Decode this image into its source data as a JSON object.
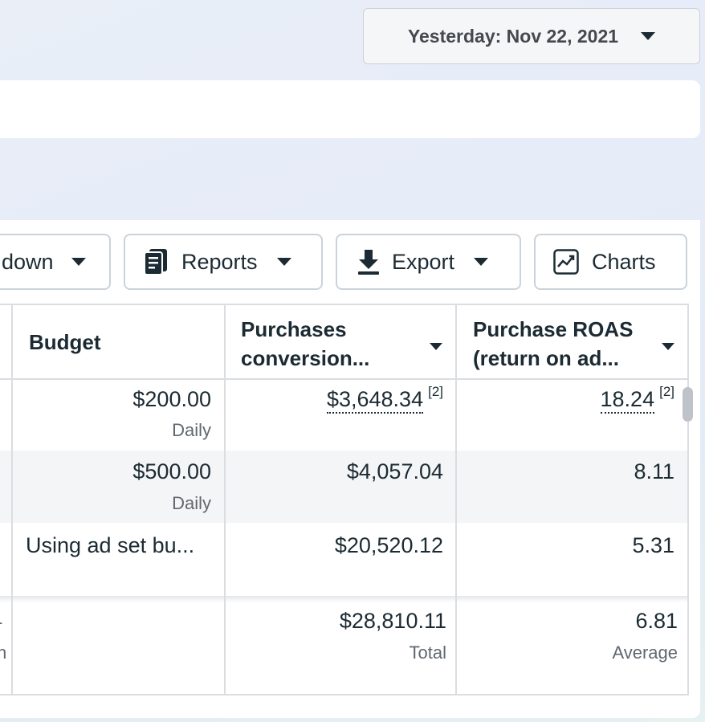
{
  "date_picker": {
    "label": "Yesterday: Nov 22, 2021"
  },
  "toolbar": {
    "breakdown_label": "down",
    "reports_label": "Reports",
    "export_label": "Export",
    "charts_label": "Charts"
  },
  "columns": {
    "budget": "Budget",
    "purchases_line1": "Purchases",
    "purchases_line2": "conversion...",
    "roas_line1": "Purchase ROAS",
    "roas_line2": "(return on ad..."
  },
  "rows": [
    {
      "budget": "$200.00",
      "budget_sub": "Daily",
      "purchases": "$3,648.34",
      "purchases_fn": "[2]",
      "roas": "18.24",
      "roas_fn": "[2]"
    },
    {
      "budget": "$500.00",
      "budget_sub": "Daily",
      "purchases": "$4,057.04",
      "roas": "8.11"
    },
    {
      "budget": "Using ad set bu...",
      "purchases": "$20,520.12",
      "roas": "5.31"
    }
  ],
  "totals": {
    "purchases": "$28,810.11",
    "purchases_sub": "Total",
    "roas": "6.81",
    "roas_sub": "Average",
    "left_fragment_1": "-",
    "left_fragment_2": "n"
  },
  "colors": {
    "text": "#1c2b33",
    "muted": "#606770",
    "border": "#dadde1",
    "band": "#f4f5f7"
  }
}
